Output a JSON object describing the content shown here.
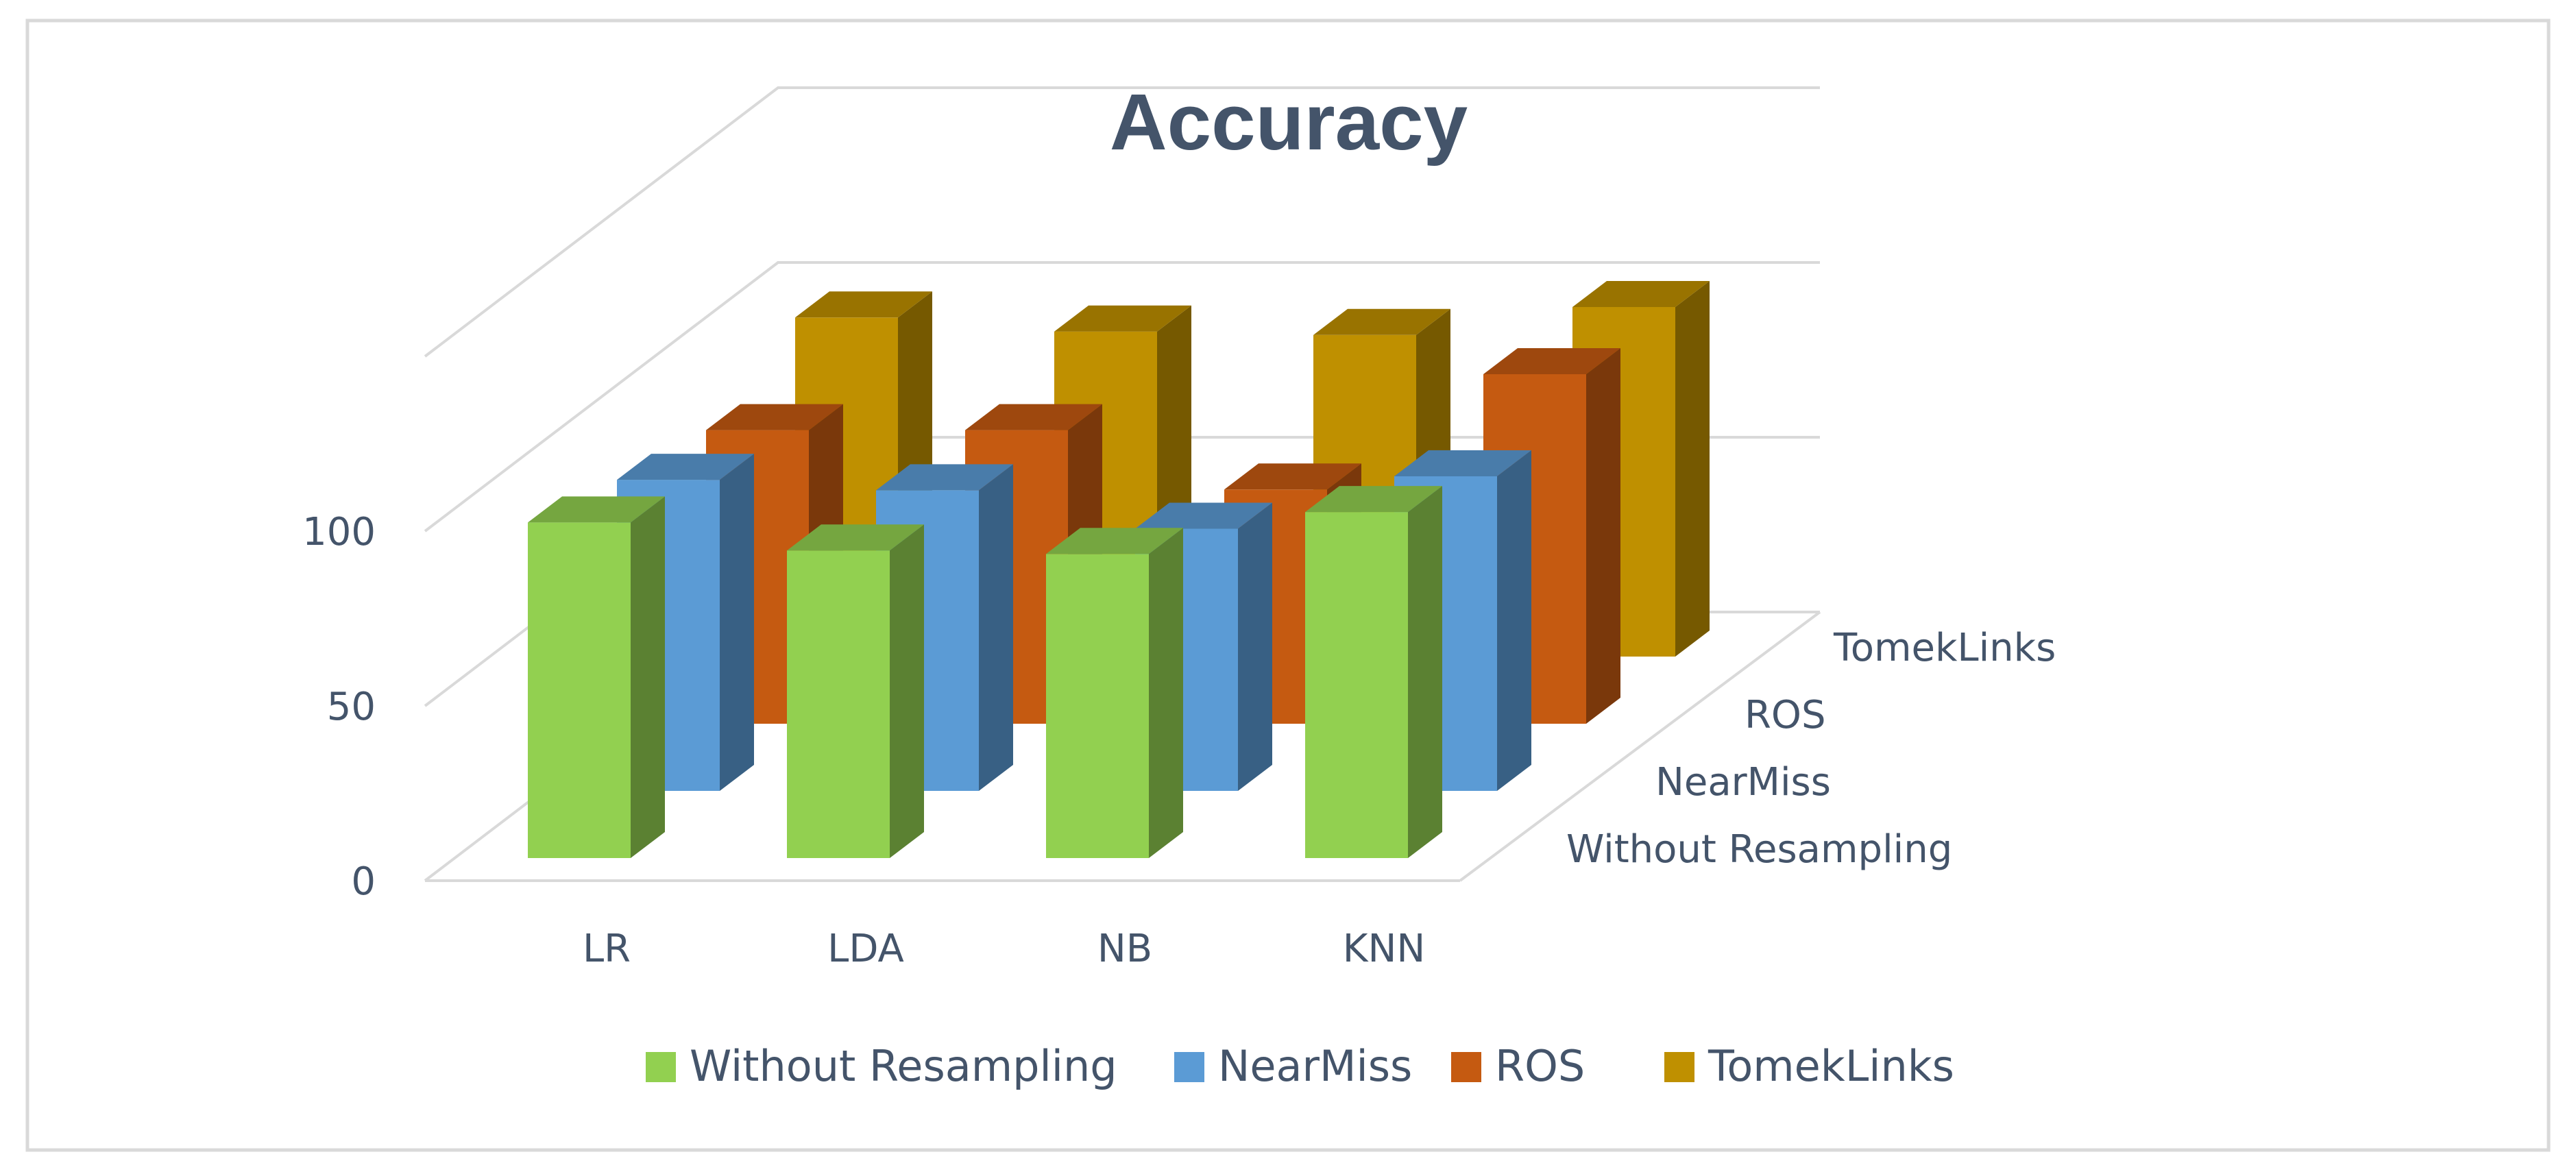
{
  "chart_data": {
    "type": "bar",
    "subtype": "3d-clustered-column",
    "title": "Accuracy",
    "categories": [
      "LR",
      "LDA",
      "NB",
      "KNN"
    ],
    "series": [
      {
        "name": "Without Resampling",
        "values": [
          96,
          88,
          87,
          99
        ],
        "color": "#92d050"
      },
      {
        "name": "NearMiss",
        "values": [
          89,
          86,
          75,
          90
        ],
        "color": "#5b9bd5"
      },
      {
        "name": "ROS",
        "values": [
          84,
          84,
          67,
          100
        ],
        "color": "#c55a11"
      },
      {
        "name": "TomekLinks",
        "values": [
          97,
          93,
          92,
          100
        ],
        "color": "#bf9000"
      }
    ],
    "ylim": [
      0,
      150
    ],
    "yticks": [
      0,
      50,
      100
    ],
    "grid": true,
    "legend_position": "bottom"
  }
}
